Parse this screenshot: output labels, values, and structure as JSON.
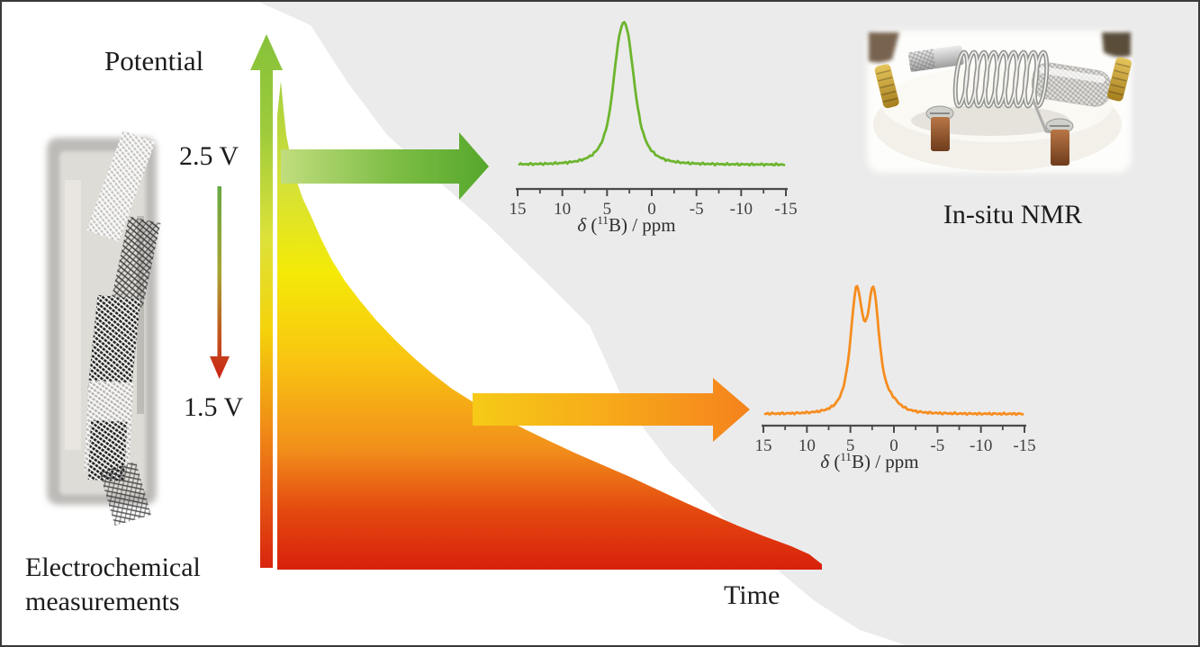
{
  "labels": {
    "potential": "Potential",
    "voltage_top": "2.5 V",
    "voltage_bottom": "1.5 V",
    "time": "Time",
    "in_situ_nmr": "In-situ NMR",
    "electrochemical_line1": "Electrochemical",
    "electrochemical_line2": "measurements"
  },
  "colors": {
    "background": "#ffffff",
    "panel_gray": "#ebebeb",
    "frame_border": "#3a3a3a",
    "text": "#1c1c1c",
    "axis": "#4a4a4a",
    "green_spectrum": "#6cb52e",
    "orange_spectrum": "#f68d1f",
    "green_arrow_start": "#c1dd7d",
    "green_arrow_end": "#55a72b",
    "orange_arrow_start": "#f6ca17",
    "orange_arrow_end": "#f5821d",
    "potential_arrow_top": "#86c13a",
    "potential_arrow_bottom": "#d8230e"
  },
  "chart_data": [
    {
      "type": "line",
      "name": "nmr-spectrum-high-potential",
      "line_color": "#6cb52e",
      "xlabel": "δ (11B) / ppm",
      "xlabel_parts": {
        "delta": "δ",
        "open": " (",
        "sup": "11",
        "close": "B) / ppm"
      },
      "x_range": [
        15,
        -15
      ],
      "x_ticks": [
        "15",
        "10",
        "5",
        "0",
        "-5",
        "-10",
        "-15"
      ],
      "peaks": [
        {
          "center_ppm": 3.2,
          "rel_height": 1.0,
          "width_ppm": 1.5
        },
        {
          "center_ppm": 2.45,
          "rel_height": 0.3,
          "width_ppm": 1.2
        },
        {
          "center_ppm": 3.95,
          "rel_height": 0.15,
          "width_ppm": 0.8
        }
      ],
      "description": "single 11B resonance near 3 ppm, spectrum recorded at 2.5 V"
    },
    {
      "type": "line",
      "name": "nmr-spectrum-low-potential",
      "line_color": "#f68d1f",
      "xlabel": "δ (11B) / ppm",
      "xlabel_parts": {
        "delta": "δ",
        "open": " (",
        "sup": "11",
        "close": "B) / ppm"
      },
      "x_range": [
        15,
        -15
      ],
      "x_ticks": [
        "15",
        "10",
        "5",
        "0",
        "-5",
        "-10",
        "-15"
      ],
      "peaks": [
        {
          "center_ppm": 4.3,
          "rel_height": 1.0,
          "width_ppm": 1.05
        },
        {
          "center_ppm": 2.35,
          "rel_height": 0.97,
          "width_ppm": 1.0
        },
        {
          "center_ppm": 0.3,
          "rel_height": 0.06,
          "width_ppm": 1.5
        }
      ],
      "description": "split double 11B resonance near 4 and 2 ppm, spectrum recorded at 1.5 V"
    },
    {
      "type": "area",
      "name": "potential-decay-curve",
      "xlabel": "Time",
      "ylabel": "Potential",
      "start_voltage": "2.5 V",
      "end_voltage": "1.5 V",
      "shape": "exponential_decay",
      "gradient_colors": [
        "#a5ce3e",
        "#d3e13b",
        "#f4ea07",
        "#f9c511",
        "#f2901b",
        "#e4490f",
        "#d8200c"
      ]
    }
  ]
}
